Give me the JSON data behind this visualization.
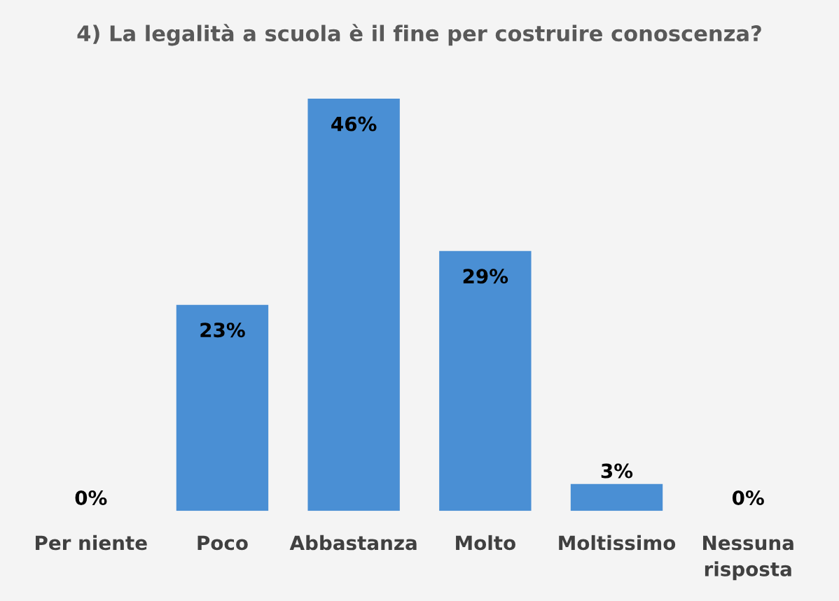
{
  "chart_data": {
    "type": "bar",
    "title": "4) La legalità a scuola è il fine per costruire conoscenza?",
    "categories": [
      "Per niente",
      "Poco",
      "Abbastanza",
      "Molto",
      "Moltissimo",
      "Nessuna\nrisposta"
    ],
    "values": [
      0,
      23,
      46,
      29,
      3,
      0
    ],
    "value_labels": [
      "0%",
      "23%",
      "46%",
      "29%",
      "3%",
      "0%"
    ],
    "color": "#4a8fd4",
    "grid": false,
    "legend": false
  }
}
